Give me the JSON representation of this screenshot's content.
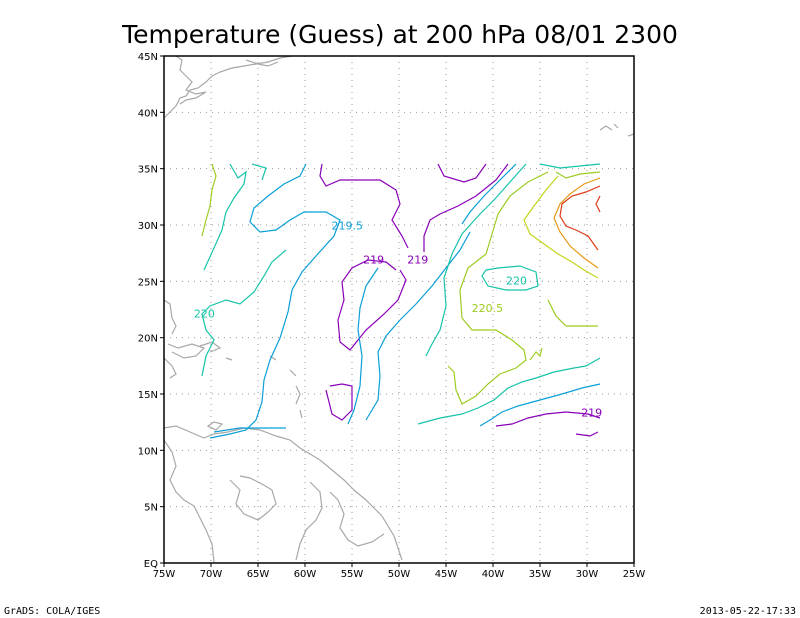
{
  "chart_data": {
    "type": "contour",
    "title": "Temperature (Guess) at 200 hPa 08/01 2300",
    "x_ticks": [
      "75W",
      "70W",
      "65W",
      "60W",
      "55W",
      "50W",
      "45W",
      "40W",
      "35W",
      "30W",
      "25W"
    ],
    "y_ticks": [
      "EQ",
      "5N",
      "10N",
      "15N",
      "20N",
      "25N",
      "30N",
      "35N",
      "40N",
      "45N"
    ],
    "xlim": [
      -75,
      -25
    ],
    "ylim": [
      0,
      45
    ],
    "grid": true,
    "contour_labels": [
      {
        "text": "219.5",
        "lon": -55.5,
        "lat": 29.6,
        "color": "#0a9fd8"
      },
      {
        "text": "219",
        "lon": -52.7,
        "lat": 26.6,
        "color": "#8a00b8"
      },
      {
        "text": "219",
        "lon": -48.0,
        "lat": 26.6,
        "color": "#8a00b8"
      },
      {
        "text": "220",
        "lon": -70.7,
        "lat": 21.8,
        "color": "#16c4a8"
      },
      {
        "text": "220.5",
        "lon": -40.6,
        "lat": 22.3,
        "color": "#9dcc22"
      },
      {
        "text": "220",
        "lon": -37.5,
        "lat": 24.7,
        "color": "#16c4a8"
      },
      {
        "text": "219",
        "lon": -29.5,
        "lat": 13.0,
        "color": "#8a00b8"
      }
    ],
    "footer_left": "GrADS: COLA/IGES",
    "footer_right": "2013-05-22-17:33"
  }
}
